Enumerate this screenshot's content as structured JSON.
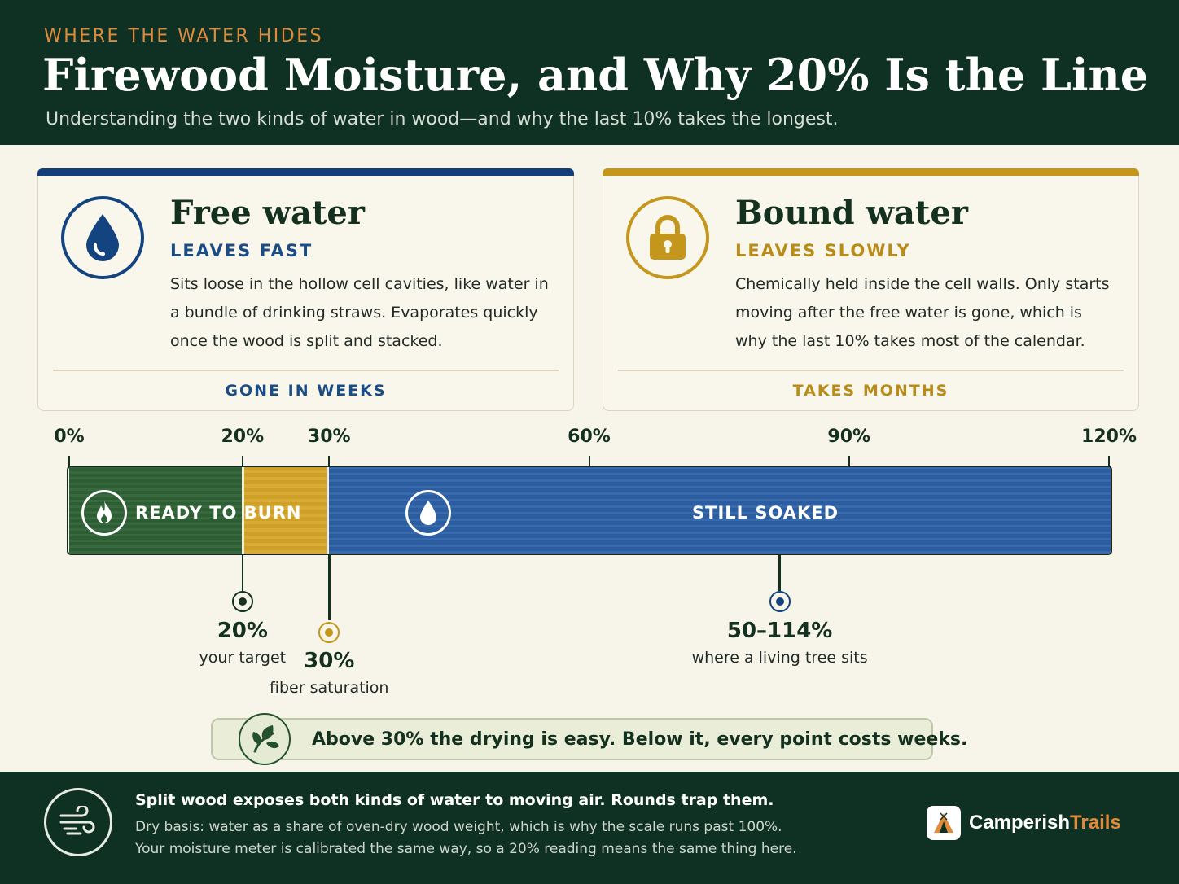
{
  "header": {
    "kicker": "WHERE THE WATER HIDES",
    "title": "Firewood Moisture, and Why 20% Is the Line",
    "subtitle": "Understanding the two kinds of water in wood—and why the last 10% takes the longest."
  },
  "cards": {
    "free": {
      "icon": "water-drop-icon",
      "title": "Free water",
      "speed": "LEAVES  FAST",
      "description": "Sits loose in the hollow cell cavities, like water in a bundle of drinking straws. Evaporates quickly once the wood is split and stacked.",
      "footer": "GONE IN WEEKS",
      "accent": "#123f7a"
    },
    "bound": {
      "icon": "padlock-icon",
      "title": "Bound water",
      "speed": "LEAVES  SLOWLY",
      "description": "Chemically held inside the cell walls. Only starts moving after the free water is gone, which is why the last 10% takes most of the calendar.",
      "footer": "TAKES MONTHS",
      "accent": "#c4961c"
    }
  },
  "scale": {
    "min": 0,
    "max": 120,
    "ticks": [
      {
        "value": 0,
        "label": "0%"
      },
      {
        "value": 20,
        "label": "20%"
      },
      {
        "value": 30,
        "label": "30%"
      },
      {
        "value": 60,
        "label": "60%"
      },
      {
        "value": 90,
        "label": "90%"
      },
      {
        "value": 120,
        "label": "120%"
      }
    ],
    "segments": [
      {
        "from": 0,
        "to": 20,
        "label": "READY TO BURN",
        "icon": "flame-icon",
        "color": "#2f6236"
      },
      {
        "from": 20,
        "to": 30,
        "label": "",
        "color": "#d7a62a"
      },
      {
        "from": 30,
        "to": 120,
        "label": "STILL SOAKED",
        "icon": "water-drop-icon",
        "color": "#2d62a8"
      }
    ],
    "annotations": [
      {
        "value": 20,
        "value_label": "20%",
        "caption": "your target",
        "color": "#14301f"
      },
      {
        "value": 30,
        "value_label": "30%",
        "caption": "fiber saturation",
        "color": "#c4961c"
      },
      {
        "value": 82,
        "value_label": "50–114%",
        "caption": "where a living tree sits",
        "color": "#14447f"
      }
    ]
  },
  "callout": {
    "icon": "leaf-icon",
    "text": "Above 30% the drying is easy. Below it, every point costs weeks."
  },
  "footer": {
    "icon": "wind-icon",
    "lead": "Split wood exposes both kinds of water to moving air. Rounds trap them.",
    "note_line1": "Dry basis: water as a share of oven-dry wood weight, which is why the scale runs past 100%.",
    "note_line2": "Your moisture meter is calibrated the same way, so a 20% reading means the same thing here.",
    "brand_main": "Camperish",
    "brand_accent": "Trails"
  }
}
